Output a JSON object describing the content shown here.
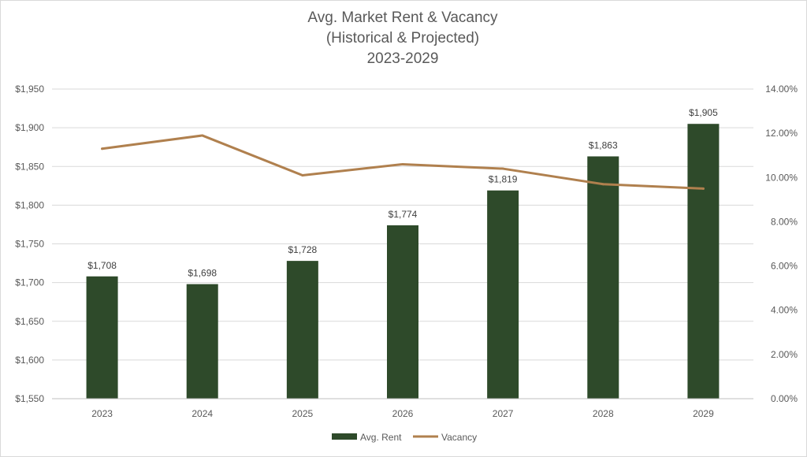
{
  "chart_data": {
    "type": "bar",
    "title_lines": [
      "Avg. Market Rent & Vacancy",
      "(Historical & Projected)",
      "2023-2029"
    ],
    "categories": [
      "2023",
      "2024",
      "2025",
      "2026",
      "2027",
      "2028",
      "2029"
    ],
    "series": [
      {
        "name": "Avg. Rent",
        "type": "bar",
        "axis": "left",
        "values": [
          1708,
          1698,
          1728,
          1774,
          1819,
          1863,
          1905
        ],
        "labels": [
          "$1,708",
          "$1,698",
          "$1,728",
          "$1,774",
          "$1,819",
          "$1,863",
          "$1,905"
        ],
        "color": "#2e4a2a"
      },
      {
        "name": "Vacancy",
        "type": "line",
        "axis": "right",
        "values": [
          11.3,
          11.9,
          10.1,
          10.6,
          10.4,
          9.7,
          9.5
        ],
        "color": "#b0804e"
      }
    ],
    "y_left": {
      "min": 1550,
      "max": 1950,
      "step": 50,
      "tick_labels": [
        "$1,550",
        "$1,600",
        "$1,650",
        "$1,700",
        "$1,750",
        "$1,800",
        "$1,850",
        "$1,900",
        "$1,950"
      ]
    },
    "y_right": {
      "min": 0,
      "max": 14,
      "step": 2,
      "tick_labels": [
        "0.00%",
        "2.00%",
        "4.00%",
        "6.00%",
        "8.00%",
        "10.00%",
        "12.00%",
        "14.00%"
      ]
    },
    "grid": true,
    "legend_position": "bottom"
  }
}
